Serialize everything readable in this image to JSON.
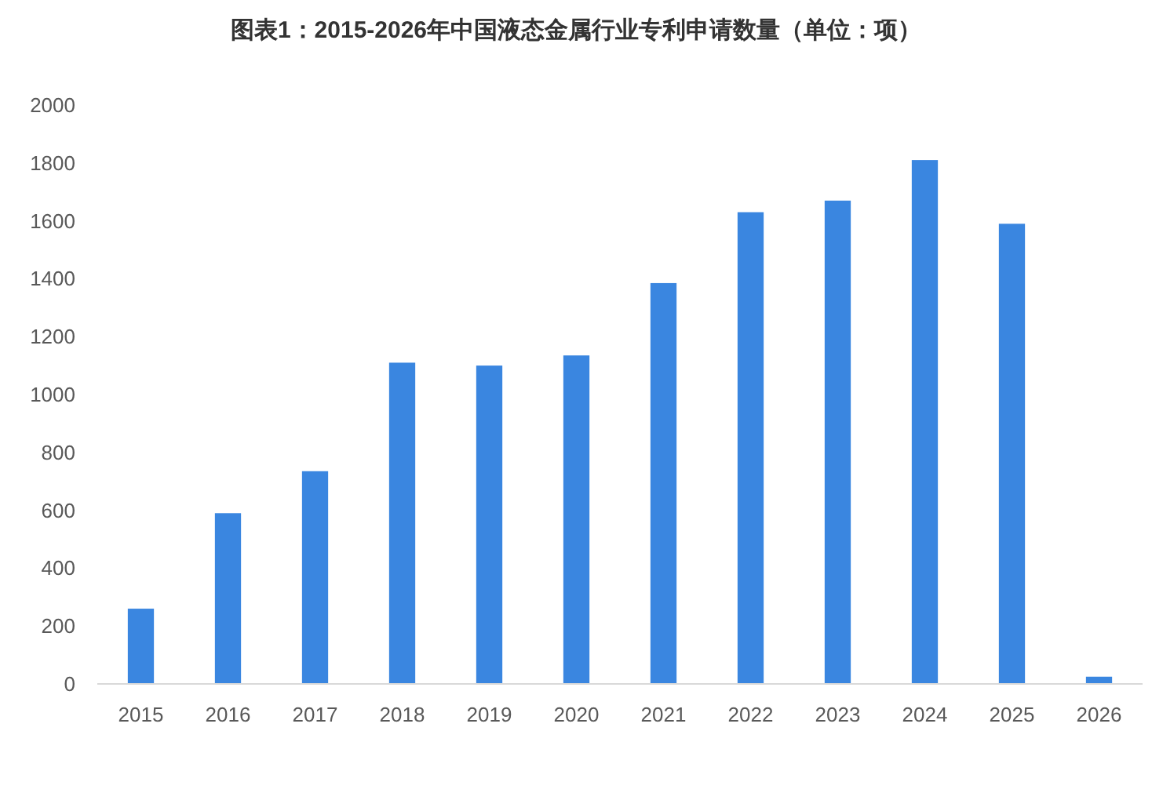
{
  "chart_data": {
    "type": "bar",
    "title": "图表1：2015-2026年中国液态金属行业专利申请数量（单位：项）",
    "categories": [
      "2015",
      "2016",
      "2017",
      "2018",
      "2019",
      "2020",
      "2021",
      "2022",
      "2023",
      "2024",
      "2025",
      "2026"
    ],
    "values": [
      260,
      590,
      735,
      1110,
      1100,
      1135,
      1385,
      1630,
      1670,
      1810,
      1590,
      25
    ],
    "color": "#3a86e0",
    "ylim": [
      0,
      2000
    ],
    "yticks": [
      0,
      200,
      400,
      600,
      800,
      1000,
      1200,
      1400,
      1600,
      1800,
      2000
    ],
    "grid": false
  }
}
